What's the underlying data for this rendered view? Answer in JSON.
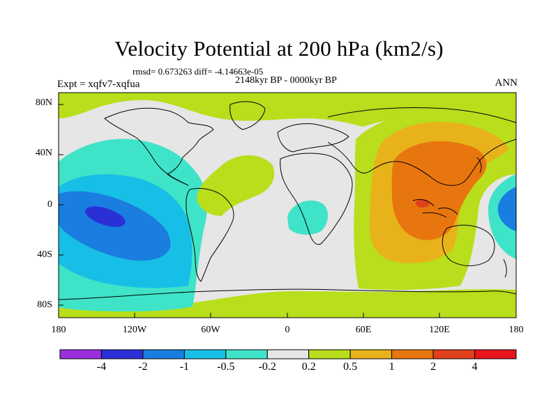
{
  "header": {
    "title": "Velocity Potential at 200 hPa (km2/s)",
    "stats": "rmsd= 0.673263  diff= -4.14663e-05",
    "period": "2148kyr BP - 0000kyr BP",
    "experiment": "Expt = xqfv7-xqfua",
    "season": "ANN"
  },
  "map_data": {
    "type": "contour-map",
    "variable": "Velocity Potential at 200 hPa",
    "projection": "cylindrical equidistant",
    "lon_range": [
      -180,
      180
    ],
    "lat_range": [
      -90,
      90
    ],
    "lon_ticks": [
      "180",
      "120W",
      "60W",
      "0",
      "60E",
      "120E",
      "180"
    ],
    "lat_ticks": [
      "80N",
      "40N",
      "0",
      "40S",
      "80S"
    ],
    "coastlines": true,
    "background_level": "-0.2 to 0.2",
    "features": [
      {
        "region": "Arctic band (north of ~65N)",
        "level": "0.2 to 0.5"
      },
      {
        "region": "Southern Ocean band (~55S-65S)",
        "level": "0.2 to 0.5"
      },
      {
        "region": "Tropical Atlantic / West Africa",
        "level": "0.2 to 0.5"
      },
      {
        "region": "Central/East Pacific",
        "level": "-2 to -1",
        "minimum": "-4 to -2 near 150W 5S"
      },
      {
        "region": "Indian Ocean / Maritime Continent",
        "level": "0.5 to 1",
        "maximum": "2 to 4 near 110E 0"
      },
      {
        "region": "Far Western Pacific edge near 180",
        "level": "-1 to -0.5"
      },
      {
        "region": "South Atlantic off Africa",
        "level": "-0.5 to -0.2"
      }
    ]
  },
  "colorbar": {
    "labels": [
      "-4",
      "-2",
      "-1",
      "-0.5",
      "-0.2",
      "0.2",
      "0.5",
      "1",
      "2",
      "4"
    ],
    "colors": [
      "#9b2fe0",
      "#2b2fd6",
      "#1a7ee0",
      "#17bfe6",
      "#3fe3c8",
      "#e6e6e6",
      "#b8de1c",
      "#e8b21a",
      "#e8760f",
      "#e0401a",
      "#e8151c"
    ]
  }
}
